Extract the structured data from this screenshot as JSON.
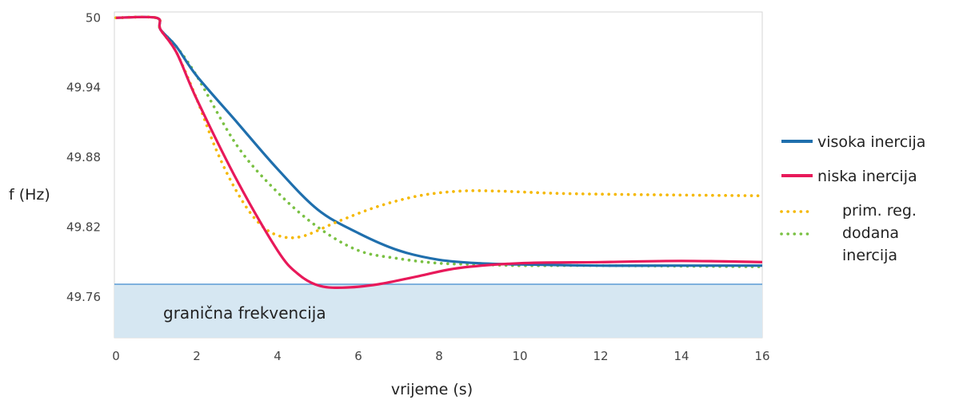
{
  "chart_data": {
    "type": "line",
    "xlabel": "vrijeme (s)",
    "ylabel": "f (Hz)",
    "xlim": [
      0,
      16
    ],
    "ylim": [
      49.725,
      50.005
    ],
    "x_ticks": [
      0,
      2,
      4,
      6,
      8,
      10,
      12,
      14,
      16
    ],
    "x_tick_labels": [
      "0",
      "2",
      "4",
      "6",
      "8",
      "10",
      "12",
      "14",
      "16"
    ],
    "y_ticks": [
      50,
      49.94,
      49.88,
      49.82,
      49.76
    ],
    "y_tick_labels": [
      "50",
      "49.94",
      "49.88",
      "49.82",
      "49.76"
    ],
    "grid": false,
    "legend_position": "right",
    "threshold": {
      "value": 49.771,
      "label": "granična frekvencija",
      "line_color": "#5b9bd5",
      "fill_color": "#d6e7f2"
    },
    "series": [
      {
        "name": "visoka inercija",
        "color": "#1f6fad",
        "style": "solid",
        "points": [
          [
            0,
            50.0
          ],
          [
            1.0,
            50.0
          ],
          [
            1.1,
            49.99
          ],
          [
            1.5,
            49.975
          ],
          [
            2,
            49.95
          ],
          [
            3,
            49.91
          ],
          [
            4,
            49.87
          ],
          [
            5,
            49.835
          ],
          [
            6,
            49.815
          ],
          [
            7,
            49.8
          ],
          [
            8,
            49.792
          ],
          [
            9,
            49.789
          ],
          [
            10,
            49.788
          ],
          [
            12,
            49.787
          ],
          [
            14,
            49.787
          ],
          [
            16,
            49.787
          ]
        ]
      },
      {
        "name": "niska inercija",
        "color": "#e8195a",
        "style": "solid",
        "points": [
          [
            0,
            50.0
          ],
          [
            1.0,
            50.0
          ],
          [
            1.1,
            49.99
          ],
          [
            1.5,
            49.97
          ],
          [
            2,
            49.93
          ],
          [
            3,
            49.86
          ],
          [
            4,
            49.8
          ],
          [
            4.5,
            49.78
          ],
          [
            5,
            49.77
          ],
          [
            5.6,
            49.768
          ],
          [
            6.5,
            49.771
          ],
          [
            7.5,
            49.778
          ],
          [
            8.5,
            49.785
          ],
          [
            10,
            49.789
          ],
          [
            12,
            49.79
          ],
          [
            14,
            49.791
          ],
          [
            16,
            49.79
          ]
        ]
      },
      {
        "name": "prim. reg.",
        "color": "#f5b800",
        "style": "dotted",
        "points": [
          [
            0,
            50.0
          ],
          [
            1.0,
            50.0
          ],
          [
            1.1,
            49.99
          ],
          [
            1.5,
            49.97
          ],
          [
            2,
            49.93
          ],
          [
            2.5,
            49.885
          ],
          [
            3,
            49.85
          ],
          [
            3.5,
            49.825
          ],
          [
            4,
            49.813
          ],
          [
            4.6,
            49.812
          ],
          [
            5.5,
            49.825
          ],
          [
            6.5,
            49.838
          ],
          [
            7.5,
            49.847
          ],
          [
            8.5,
            49.851
          ],
          [
            9.5,
            49.851
          ],
          [
            11,
            49.849
          ],
          [
            13,
            49.848
          ],
          [
            16,
            49.847
          ]
        ]
      },
      {
        "name": "dodana inercija",
        "color": "#7ac143",
        "style": "dotted",
        "points": [
          [
            0,
            50.0
          ],
          [
            1.0,
            50.0
          ],
          [
            1.1,
            49.99
          ],
          [
            1.5,
            49.975
          ],
          [
            2,
            49.95
          ],
          [
            3,
            49.89
          ],
          [
            4,
            49.85
          ],
          [
            5,
            49.82
          ],
          [
            6,
            49.8
          ],
          [
            7,
            49.793
          ],
          [
            8,
            49.789
          ],
          [
            9,
            49.788
          ],
          [
            10,
            49.787
          ],
          [
            12,
            49.787
          ],
          [
            16,
            49.786
          ]
        ]
      }
    ]
  }
}
